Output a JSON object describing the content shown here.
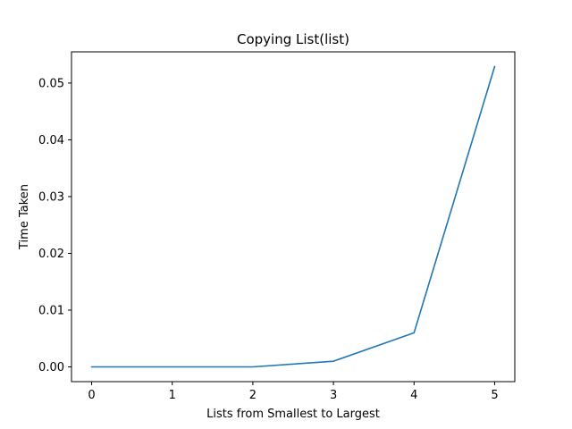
{
  "chart_data": {
    "type": "line",
    "title": "Copying List(list)",
    "xlabel": "Lists from Smallest to Largest",
    "ylabel": "Time Taken",
    "x": [
      0,
      1,
      2,
      3,
      4,
      5
    ],
    "series": [
      {
        "values": [
          0.0,
          0.0,
          0.0,
          0.001,
          0.006,
          0.0529
        ],
        "color": "#1f77b4"
      }
    ],
    "xlim": [
      -0.25,
      5.25
    ],
    "ylim": [
      -0.0026,
      0.0555
    ],
    "xticks": [
      0,
      1,
      2,
      3,
      4,
      5
    ],
    "xtick_labels": [
      "0",
      "1",
      "2",
      "3",
      "4",
      "5"
    ],
    "yticks": [
      0.0,
      0.01,
      0.02,
      0.03,
      0.04,
      0.05
    ],
    "ytick_labels": [
      "0.00",
      "0.01",
      "0.02",
      "0.03",
      "0.04",
      "0.05"
    ],
    "grid": false,
    "legend": false
  }
}
